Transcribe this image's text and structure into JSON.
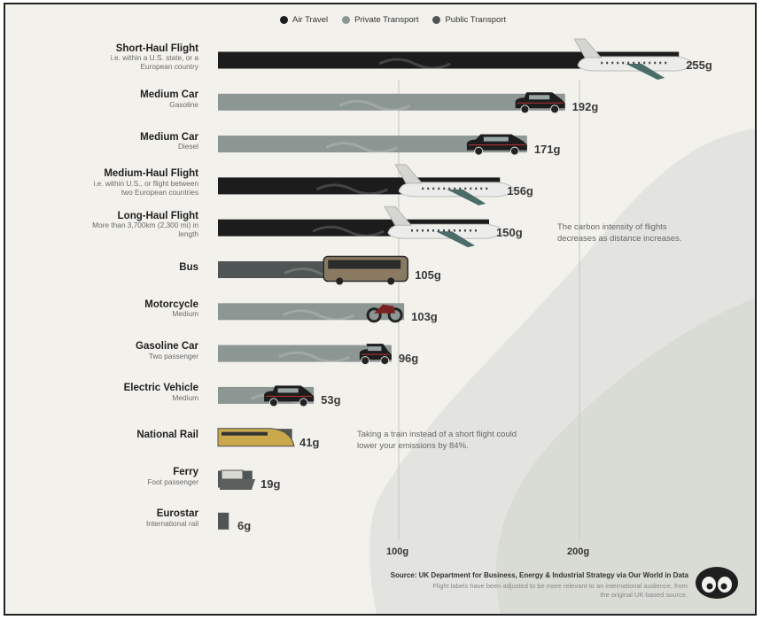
{
  "legend": [
    {
      "label": "Air Travel",
      "color": "#1c1c1c"
    },
    {
      "label": "Private Transport",
      "color": "#8c9692"
    },
    {
      "label": "Public Transport",
      "color": "#4f5554"
    }
  ],
  "annotations": {
    "flights": "The carbon intensity of flights decreases as distance increases.",
    "train": "Taking a train instead of a short flight could lower your emissions by 84%."
  },
  "source": "Source: UK Department for Business, Energy & Industrial Strategy via Our World in Data",
  "note": "Flight labels have been adjusted to be more relevant to an international audience, from the original UK-based source.",
  "chart_data": {
    "type": "bar",
    "orientation": "horizontal",
    "categories": [
      {
        "name": "Short-Haul Flight",
        "sub": "i.e. within a U.S. state, or a European country",
        "value": 255,
        "group": "Air Travel",
        "label": "255g"
      },
      {
        "name": "Medium Car",
        "sub": "Gasoline",
        "value": 192,
        "group": "Private Transport",
        "label": "192g"
      },
      {
        "name": "Medium Car",
        "sub": "Diesel",
        "value": 171,
        "group": "Private Transport",
        "label": "171g"
      },
      {
        "name": "Medium-Haul Flight",
        "sub": "i.e. within U.S., or flight between two European countries",
        "value": 156,
        "group": "Air Travel",
        "label": "156g"
      },
      {
        "name": "Long-Haul Flight",
        "sub": "More than 3,700km (2,300 mi) in length",
        "value": 150,
        "group": "Air Travel",
        "label": "150g"
      },
      {
        "name": "Bus",
        "sub": "",
        "value": 105,
        "group": "Public Transport",
        "label": "105g"
      },
      {
        "name": "Motorcycle",
        "sub": "Medium",
        "value": 103,
        "group": "Private Transport",
        "label": "103g"
      },
      {
        "name": "Gasoline Car",
        "sub": "Two passenger",
        "value": 96,
        "group": "Private Transport",
        "label": "96g"
      },
      {
        "name": "Electric Vehicle",
        "sub": "Medium",
        "value": 53,
        "group": "Private Transport",
        "label": "53g"
      },
      {
        "name": "National Rail",
        "sub": "",
        "value": 41,
        "group": "Public Transport",
        "label": "41g"
      },
      {
        "name": "Ferry",
        "sub": "Foot passenger",
        "value": 19,
        "group": "Public Transport",
        "label": "19g"
      },
      {
        "name": "Eurostar",
        "sub": "International rail",
        "value": 6,
        "group": "Public Transport",
        "label": "6g"
      }
    ],
    "ticks": [
      {
        "value": 100,
        "label": "100g"
      },
      {
        "value": 200,
        "label": "200g"
      }
    ],
    "xlim": [
      0,
      255
    ],
    "grid": true,
    "legend_position": "top-center"
  }
}
